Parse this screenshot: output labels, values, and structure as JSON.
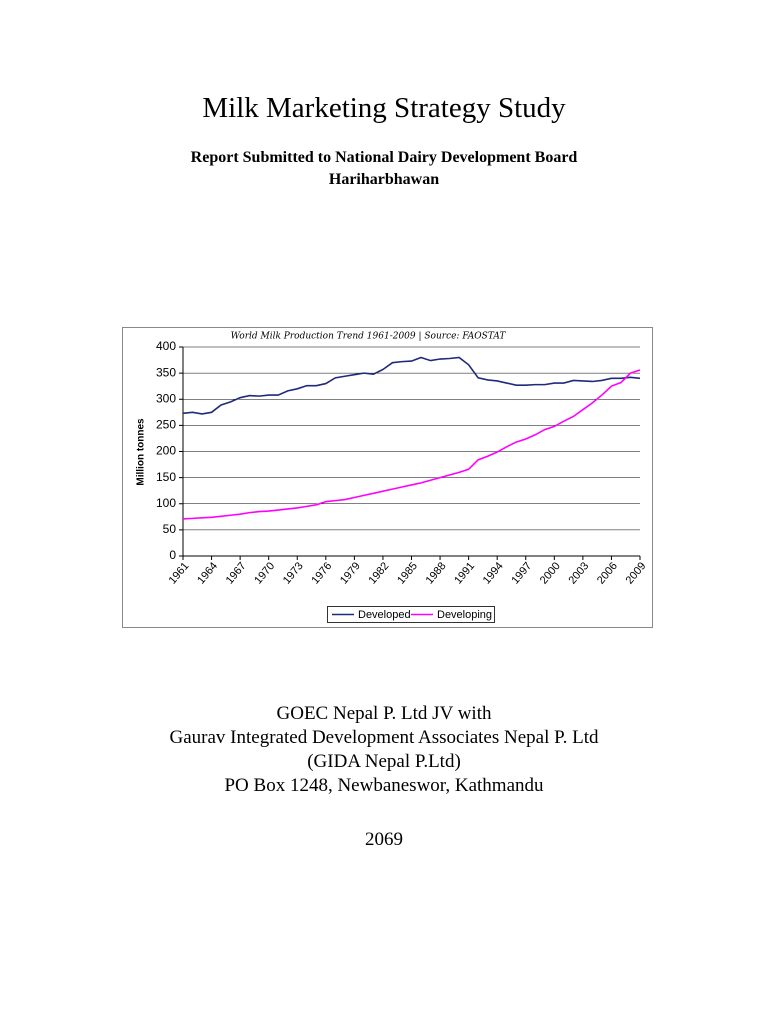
{
  "title": "Milk Marketing Strategy Study",
  "subtitle": [
    "Report Submitted to National Dairy Development Board",
    "Hariharbhawan"
  ],
  "footer": [
    "GOEC Nepal P. Ltd JV with",
    "Gaurav Integrated Development Associates Nepal P. Ltd",
    "(GIDA Nepal P.Ltd)",
    "PO Box 1248, Newbaneswor, Kathmandu"
  ],
  "year": "2069",
  "chart_data": {
    "type": "line",
    "title": "World Milk Production Trend 1961-2009 | Source: FAOSTAT",
    "y_label": "Million tonnes",
    "x": [
      1961,
      1962,
      1963,
      1964,
      1965,
      1966,
      1967,
      1968,
      1969,
      1970,
      1971,
      1972,
      1973,
      1974,
      1975,
      1976,
      1977,
      1978,
      1979,
      1980,
      1981,
      1982,
      1983,
      1984,
      1985,
      1986,
      1987,
      1988,
      1989,
      1990,
      1991,
      1992,
      1993,
      1994,
      1995,
      1996,
      1997,
      1998,
      1999,
      2000,
      2001,
      2002,
      2003,
      2004,
      2005,
      2006,
      2007,
      2008,
      2009
    ],
    "series": [
      {
        "name": "Developed",
        "color": "#1f2a7a",
        "values": [
          273,
          275,
          272,
          275,
          289,
          295,
          303,
          307,
          306,
          308,
          308,
          316,
          320,
          326,
          326,
          330,
          341,
          344,
          347,
          350,
          348,
          357,
          370,
          372,
          373,
          380,
          374,
          377,
          378,
          380,
          366,
          341,
          337,
          335,
          331,
          327,
          327,
          328,
          328,
          331,
          331,
          336,
          335,
          334,
          336,
          340,
          340,
          342,
          340
        ]
      },
      {
        "name": "Developing",
        "color": "#ff00ff",
        "values": [
          71,
          72,
          73,
          74,
          76,
          78,
          80,
          83,
          85,
          86,
          88,
          90,
          92,
          95,
          98,
          104,
          106,
          108,
          112,
          116,
          120,
          124,
          128,
          132,
          136,
          140,
          145,
          150,
          155,
          160,
          166,
          184,
          191,
          199,
          209,
          218,
          224,
          232,
          242,
          248,
          258,
          267,
          280,
          293,
          308,
          325,
          332,
          350,
          356
        ]
      }
    ],
    "xlim": [
      1961,
      2009
    ],
    "xticks": [
      1961,
      1964,
      1967,
      1970,
      1973,
      1976,
      1979,
      1982,
      1985,
      1988,
      1991,
      1994,
      1997,
      2000,
      2003,
      2006,
      2009
    ],
    "ylim": [
      0,
      400
    ],
    "yticks": [
      0,
      50,
      100,
      150,
      200,
      250,
      300,
      350,
      400
    ],
    "grid": true,
    "legend": "bottom"
  }
}
